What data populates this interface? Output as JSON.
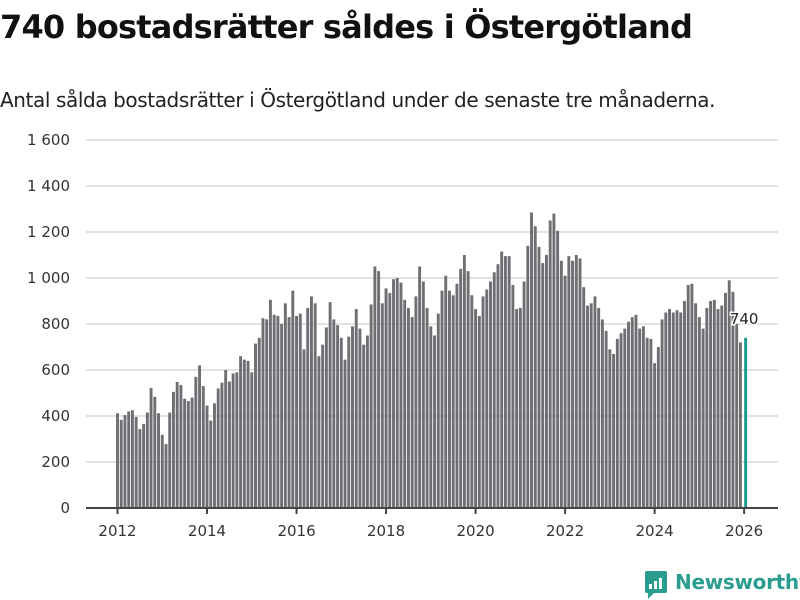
{
  "header": {
    "title": "740 bostadsrätter såldes i Östergötland",
    "subtitle": "Antal sålda bostadsrätter i Östergötland under de senaste tre månaderna."
  },
  "brand": {
    "name": "Newsworthy",
    "color": "#2a9d8f",
    "icon": "chart-bubble-icon"
  },
  "chart_data": {
    "type": "bar",
    "title": "740 bostadsrätter såldes i Östergötland",
    "subtitle": "Antal sålda bostadsrätter i Östergötland under de senaste tre månaderna.",
    "xlabel": "",
    "ylabel": "",
    "ylim": [
      0,
      1600
    ],
    "yticks": [
      0,
      200,
      400,
      600,
      800,
      1000,
      1200,
      1400,
      1600
    ],
    "ytick_labels": [
      "0",
      "200",
      "400",
      "600",
      "800",
      "1 000",
      "1 200",
      "1 400",
      "1 600"
    ],
    "xticks": [
      "2012",
      "2014",
      "2016",
      "2018",
      "2020",
      "2022",
      "2024",
      "2026"
    ],
    "grid": true,
    "start": "2012-01",
    "frequency": "monthly",
    "bar_color": "#6f6e73",
    "highlight_color": "#1a9a8a",
    "annotation": {
      "label": "740",
      "target": "last"
    },
    "values": [
      412,
      383,
      404,
      420,
      425,
      396,
      343,
      365,
      415,
      522,
      483,
      412,
      318,
      278,
      415,
      505,
      548,
      535,
      475,
      465,
      480,
      570,
      620,
      530,
      445,
      380,
      455,
      520,
      545,
      600,
      550,
      585,
      590,
      660,
      645,
      640,
      590,
      715,
      740,
      825,
      820,
      905,
      840,
      835,
      800,
      890,
      830,
      945,
      835,
      845,
      690,
      870,
      920,
      890,
      660,
      710,
      785,
      895,
      820,
      795,
      740,
      645,
      745,
      790,
      865,
      780,
      710,
      750,
      885,
      1050,
      1030,
      890,
      955,
      935,
      995,
      1000,
      980,
      905,
      870,
      830,
      920,
      1050,
      985,
      870,
      790,
      750,
      845,
      945,
      1010,
      945,
      925,
      975,
      1040,
      1100,
      1030,
      925,
      865,
      835,
      920,
      950,
      985,
      1025,
      1060,
      1115,
      1095,
      1095,
      970,
      865,
      870,
      985,
      1140,
      1285,
      1225,
      1135,
      1065,
      1100,
      1250,
      1280,
      1205,
      1075,
      1010,
      1095,
      1075,
      1100,
      1085,
      960,
      880,
      890,
      920,
      870,
      820,
      770,
      690,
      670,
      735,
      760,
      780,
      810,
      830,
      840,
      780,
      790,
      740,
      735,
      630,
      700,
      820,
      850,
      865,
      850,
      860,
      850,
      900,
      970,
      975,
      890,
      830,
      780,
      870,
      900,
      905,
      865,
      880,
      935,
      990,
      940,
      800,
      720,
      740
    ]
  }
}
